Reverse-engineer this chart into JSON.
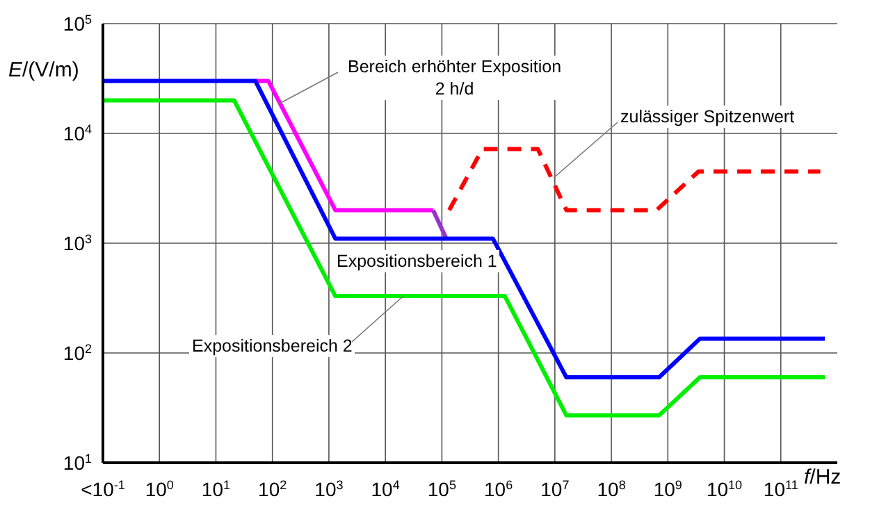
{
  "chart_data": {
    "type": "line",
    "xlabel": "f/Hz",
    "ylabel": "E/(V/m)",
    "log": "xy",
    "grid": true,
    "legend": false,
    "marker": "none",
    "xlim": [
      0.1,
      1000000000000.0
    ],
    "xticks": [
      {
        "value": 0.1,
        "label": "<10$^{-1}$"
      },
      {
        "value": 1,
        "label": "10$^{0}$"
      },
      {
        "value": 10,
        "label": "10$^{1}$"
      },
      {
        "value": 100,
        "label": "10$^{2}$"
      },
      {
        "value": 1000,
        "label": "10$^{3}$"
      },
      {
        "value": 10000,
        "label": "10$^{4}$"
      },
      {
        "value": 100000,
        "label": "10$^{5}$"
      },
      {
        "value": 1000000,
        "label": "10$^{6}$"
      },
      {
        "value": 10000000,
        "label": "10$^{7}$"
      },
      {
        "value": 100000000,
        "label": "10$^{8}$"
      },
      {
        "value": 1000000000,
        "label": "10$^{9}$"
      },
      {
        "value": 10000000000,
        "label": "10$^{10}$"
      },
      {
        "value": 100000000000,
        "label": "10$^{11}$"
      }
    ],
    "ylim": [
      10,
      100000
    ],
    "yticks": [
      {
        "value": 10,
        "label": "10$^{1}$"
      },
      {
        "value": 100,
        "label": "10$^{2}$"
      },
      {
        "value": 1000,
        "label": "10$^{3}$"
      },
      {
        "value": 10000,
        "label": "10$^{4}$"
      },
      {
        "value": 100000,
        "label": "10$^{5}$"
      }
    ],
    "series": [
      {
        "name": "Bereich erhöhter Exposition\n2 h/d",
        "color": "#ff00ff",
        "line_style": "solid",
        "x": [
          50,
          85,
          1300,
          70000
        ],
        "values": [
          30000,
          30000,
          2000,
          2000
        ]
      },
      {
        "color": "#9933cc",
        "line_style": "solid",
        "x": [
          70000,
          120000
        ],
        "values": [
          2000,
          1100
        ]
      },
      {
        "name": "Expositionsbereich 1",
        "color": "#0000ff",
        "line_style": "solid",
        "x": [
          0.1,
          50,
          1300,
          800000,
          16000000,
          700000000,
          3700000000,
          600000000000
        ],
        "values": [
          30000,
          30000,
          1100,
          1100,
          60,
          60,
          135,
          135
        ]
      },
      {
        "name": "Expositionsbereich 2",
        "color": "#00ee00",
        "line_style": "solid",
        "x": [
          0.1,
          21,
          1300,
          1300000,
          16000000,
          700000000,
          3700000000,
          600000000000
        ],
        "values": [
          20000,
          20000,
          330,
          330,
          27,
          27,
          60,
          60
        ]
      },
      {
        "name": "zulässiger Spitzenwert",
        "color": "#ff0000",
        "line_style": "dashed",
        "x": [
          135000,
          520000,
          5000000,
          16000000,
          630000000,
          3500000000,
          500000000000
        ],
        "values": [
          2000,
          7200,
          7200,
          2000,
          2000,
          4500,
          4500
        ]
      }
    ]
  }
}
